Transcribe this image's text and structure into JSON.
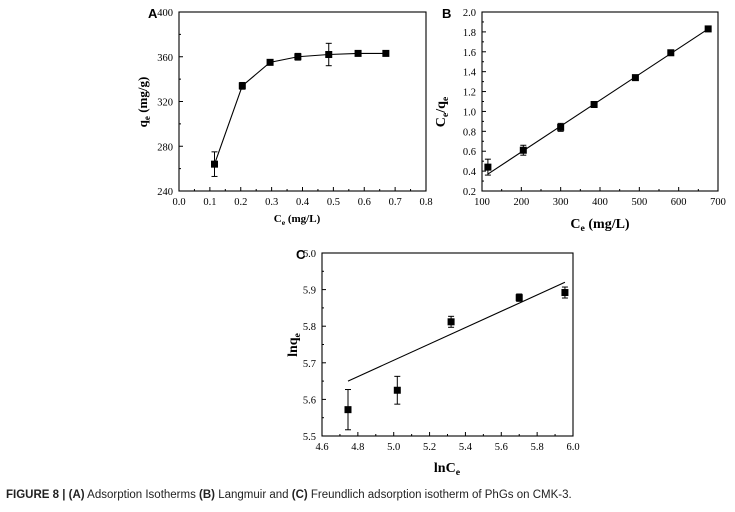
{
  "chart_data": [
    {
      "panel": "A",
      "type": "line",
      "xlabel": "C",
      "xlabel_sub": "e",
      "xlabel_unit": "(mg/L)",
      "ylabel": "q",
      "ylabel_sub": "e",
      "ylabel_unit": "(mg/g)",
      "xlim": [
        0.0,
        0.8
      ],
      "ylim": [
        240,
        400
      ],
      "xticks": [
        "0.0",
        "0.1",
        "0.2",
        "0.3",
        "0.4",
        "0.5",
        "0.6",
        "0.7",
        "0.8"
      ],
      "yticks": [
        "240",
        "280",
        "320",
        "360",
        "400"
      ],
      "series": [
        {
          "x": [
            0.115,
            0.205,
            0.295,
            0.385,
            0.485,
            0.58,
            0.67
          ],
          "y": [
            264,
            334,
            355,
            360,
            362,
            363,
            363
          ],
          "err": [
            11,
            3,
            1,
            3,
            10,
            1,
            2
          ]
        }
      ]
    },
    {
      "panel": "B",
      "type": "scatter",
      "xlabel": "C",
      "xlabel_sub": "e",
      "xlabel_unit": "(mg/L)",
      "ylabel": "C",
      "ylabel_sub": "e",
      "ylabel_mid": "/q",
      "ylabel_sub2": "e",
      "xlim": [
        100,
        700
      ],
      "ylim": [
        0.2,
        2.0
      ],
      "xticks": [
        "100",
        "200",
        "300",
        "400",
        "500",
        "600",
        "700"
      ],
      "yticks": [
        "0.2",
        "0.4",
        "0.6",
        "0.8",
        "1.0",
        "1.2",
        "1.4",
        "1.6",
        "1.8",
        "2.0"
      ],
      "series": [
        {
          "x": [
            115,
            205,
            300,
            385,
            490,
            580,
            675
          ],
          "y": [
            0.44,
            0.61,
            0.84,
            1.07,
            1.34,
            1.59,
            1.83
          ],
          "err": [
            0.08,
            0.05,
            0.04,
            0.03,
            0.02,
            0.02,
            0.02
          ]
        }
      ],
      "fit": {
        "x": [
          115,
          675
        ],
        "y": [
          0.37,
          1.83
        ]
      }
    },
    {
      "panel": "C",
      "type": "scatter",
      "xlabel": "lnC",
      "xlabel_sub": "e",
      "ylabel": "lnq",
      "ylabel_sub": "e",
      "xlim": [
        4.6,
        6.0
      ],
      "ylim": [
        5.5,
        6.0
      ],
      "xticks": [
        "4.6",
        "4.8",
        "5.0",
        "5.2",
        "5.4",
        "5.6",
        "5.8",
        "6.0"
      ],
      "yticks": [
        "5.5",
        "5.6",
        "5.7",
        "5.8",
        "5.9",
        "6.0"
      ],
      "series": [
        {
          "x": [
            4.745,
            5.02,
            5.32,
            5.7,
            5.955
          ],
          "y": [
            5.572,
            5.625,
            5.812,
            5.878,
            5.892
          ],
          "err": [
            0.055,
            0.038,
            0.015,
            0.01,
            0.015
          ]
        }
      ],
      "fit": {
        "x": [
          4.745,
          5.955
        ],
        "y": [
          5.65,
          5.92
        ]
      }
    }
  ],
  "caption": {
    "label": "FIGURE 8 | ",
    "parts": [
      {
        "text": "(A)",
        "bold": true
      },
      {
        "text": " Adsorption Isotherms ",
        "bold": false
      },
      {
        "text": "(B)",
        "bold": true
      },
      {
        "text": " Langmuir and ",
        "bold": false
      },
      {
        "text": "(C)",
        "bold": true
      },
      {
        "text": " Freundlich adsorption isotherm of PhGs on CMK-3.",
        "bold": false
      }
    ]
  }
}
